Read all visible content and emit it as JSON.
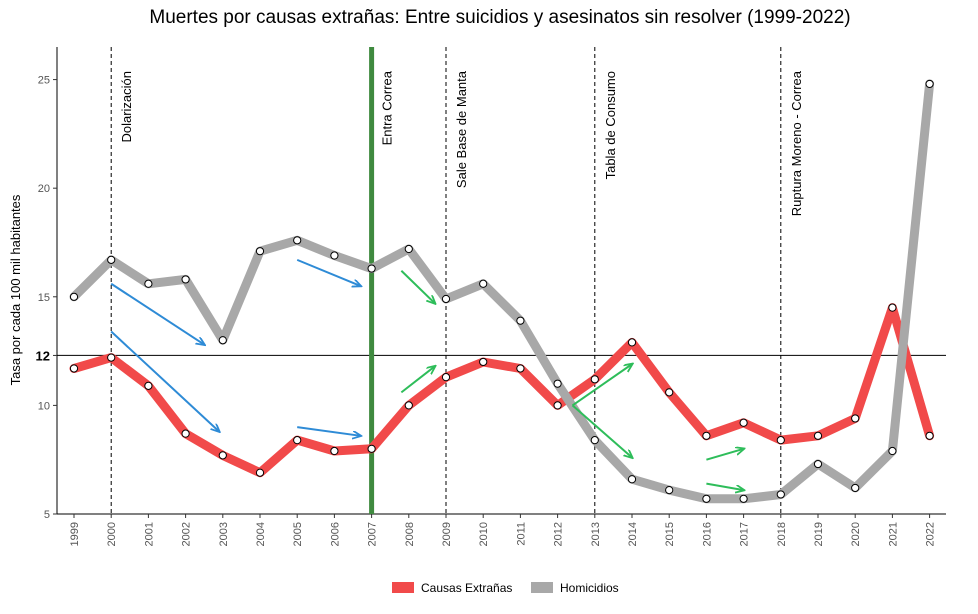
{
  "chart_data": {
    "type": "line",
    "title": "Muertes por causas extrañas:  Entre suicidios y asesinatos sin resolver (1999-2022)",
    "ylabel": "Tasa por cada 100 mil habitantes",
    "xlabel": "",
    "x": [
      1999,
      2000,
      2001,
      2002,
      2003,
      2004,
      2005,
      2006,
      2007,
      2008,
      2009,
      2010,
      2011,
      2012,
      2013,
      2014,
      2015,
      2016,
      2017,
      2018,
      2019,
      2020,
      2021,
      2022
    ],
    "x_tick_labels": [
      "1999",
      "2000",
      "2001",
      "2002",
      "2003",
      "2004",
      "2005",
      "2006",
      "2007",
      "2008",
      "2009",
      "2010",
      "2011",
      "2012",
      "2013",
      "2014",
      "2015",
      "2016",
      "2017",
      "2018",
      "2019",
      "2020",
      "2021",
      "2022"
    ],
    "ylim": [
      5,
      26.5
    ],
    "y_ticks": [
      5,
      10,
      15,
      20,
      25
    ],
    "y_tick_labels": [
      "5",
      "10",
      "15",
      "20",
      "25"
    ],
    "reference_line": {
      "y": 12.3,
      "label": "12"
    },
    "series": [
      {
        "name": "Causas Extrañas",
        "color": "#f14a4a",
        "values": [
          11.7,
          12.2,
          10.9,
          8.7,
          7.7,
          6.9,
          8.4,
          7.9,
          8.0,
          10.0,
          11.3,
          12.0,
          11.7,
          10.0,
          11.2,
          12.9,
          10.6,
          8.6,
          9.2,
          8.4,
          8.6,
          9.4,
          14.5,
          8.6
        ]
      },
      {
        "name": "Homicidios",
        "color": "#a8a8a8",
        "values": [
          15.0,
          16.7,
          15.6,
          15.8,
          13.0,
          17.1,
          17.6,
          16.9,
          16.3,
          17.2,
          14.9,
          15.6,
          13.9,
          11.0,
          8.4,
          6.6,
          6.1,
          5.7,
          5.7,
          5.9,
          7.3,
          6.2,
          7.9,
          24.8
        ]
      }
    ],
    "events": [
      {
        "x": 2000,
        "label": "Dolarización",
        "style": "dashed"
      },
      {
        "x": 2007,
        "label": "Entra Correa",
        "style": "thick-green",
        "color": "#3f8a3f"
      },
      {
        "x": 2009,
        "label": "Sale Base de Manta",
        "style": "dashed"
      },
      {
        "x": 2013,
        "label": "Tabla de Consumo",
        "style": "dashed"
      },
      {
        "x": 2018,
        "label": "Ruptura Moreno - Correa",
        "style": "dashed"
      }
    ],
    "arrows": [
      {
        "color": "#2e8bd6",
        "from": [
          2005.0,
          16.7
        ],
        "to": [
          2006.7,
          15.5
        ]
      },
      {
        "color": "#2e8bd6",
        "from": [
          2000.0,
          15.6
        ],
        "to": [
          2002.5,
          12.8
        ]
      },
      {
        "color": "#2e8bd6",
        "from": [
          2000.0,
          13.4
        ],
        "to": [
          2002.9,
          8.8
        ]
      },
      {
        "color": "#2e8bd6",
        "from": [
          2005.0,
          9.0
        ],
        "to": [
          2006.7,
          8.6
        ]
      },
      {
        "color": "#2ebd5a",
        "from": [
          2007.8,
          16.2
        ],
        "to": [
          2008.7,
          14.7
        ]
      },
      {
        "color": "#2ebd5a",
        "from": [
          2007.8,
          10.6
        ],
        "to": [
          2008.7,
          11.8
        ]
      },
      {
        "color": "#2ebd5a",
        "from": [
          2012.4,
          10.0
        ],
        "to": [
          2014.0,
          11.9
        ]
      },
      {
        "color": "#2ebd5a",
        "from": [
          2012.4,
          10.0
        ],
        "to": [
          2014.0,
          7.6
        ]
      },
      {
        "color": "#2ebd5a",
        "from": [
          2016.0,
          7.5
        ],
        "to": [
          2017.0,
          8.0
        ]
      },
      {
        "color": "#2ebd5a",
        "from": [
          2016.0,
          6.4
        ],
        "to": [
          2017.0,
          6.1
        ]
      }
    ],
    "legend": {
      "position": "bottom",
      "entries": [
        "Causas Extrañas",
        "Homicidios"
      ]
    },
    "grid": false
  }
}
